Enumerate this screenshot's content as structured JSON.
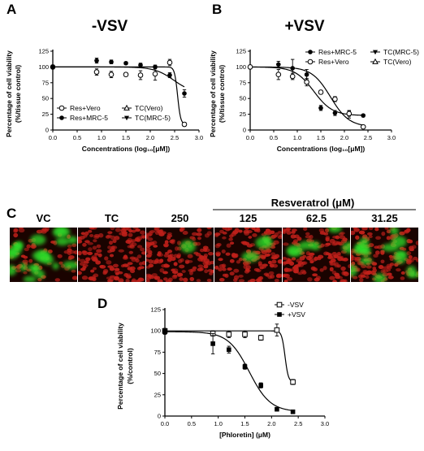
{
  "panels": {
    "A": {
      "letter": "A",
      "title": "-VSV"
    },
    "B": {
      "letter": "B",
      "title": "+VSV"
    },
    "C": {
      "letter": "C",
      "group_label": "Resveratrol (μM)",
      "columns": [
        "VC",
        "TC",
        "250",
        "125",
        "62.5",
        "31.25"
      ]
    },
    "D": {
      "letter": "D"
    }
  },
  "colors": {
    "axis": "#000000",
    "cell_red": "#c0201a",
    "cell_green": "#2ee02a",
    "background": "#ffffff"
  },
  "chart_data": [
    {
      "id": "A",
      "type": "scatter",
      "xlabel": "Concentrations (log₁₀[μM])",
      "ylabel": "Percentage of cell viability (%/tissue control)",
      "xlim": [
        0.0,
        3.0
      ],
      "ylim": [
        0,
        125
      ],
      "xticks": [
        "0.0",
        "0.5",
        "1.0",
        "1.5",
        "2.0",
        "2.5",
        "3.0"
      ],
      "yticks": [
        "0",
        "25",
        "50",
        "75",
        "100",
        "125"
      ],
      "legend": [
        "Res+Vero",
        "TC(Vero)",
        "Res+MRC-5",
        "TC(MRC-5)"
      ],
      "series": [
        {
          "name": "Res+Vero",
          "marker": "open-circle",
          "x": [
            0.0,
            0.9,
            1.2,
            1.5,
            1.8,
            2.1,
            2.4,
            2.7
          ],
          "y": [
            100,
            92,
            88,
            88,
            87,
            89,
            107,
            9
          ],
          "err": [
            3,
            5,
            5,
            3,
            7,
            10,
            5,
            3
          ]
        },
        {
          "name": "Res+MRC-5",
          "marker": "filled-circle",
          "x": [
            0.0,
            0.9,
            1.2,
            1.5,
            1.8,
            2.1,
            2.4,
            2.7
          ],
          "y": [
            100,
            110,
            108,
            106,
            103,
            100,
            87,
            58
          ],
          "err": [
            2,
            4,
            3,
            2,
            3,
            3,
            4,
            6
          ]
        }
      ]
    },
    {
      "id": "B",
      "type": "scatter",
      "xlabel": "Concentrations (log₁₀[μM])",
      "ylabel": "Percentage of cell viability (%/tissue control)",
      "xlim": [
        0.0,
        3.0
      ],
      "ylim": [
        0,
        125
      ],
      "xticks": [
        "0.0",
        "0.5",
        "1.0",
        "1.5",
        "2.0",
        "2.5",
        "3.0"
      ],
      "yticks": [
        "0",
        "25",
        "50",
        "75",
        "100",
        "125"
      ],
      "legend": [
        "Res+MRC-5",
        "TC(MRC-5)",
        "Res+Vero",
        "TC(Vero)"
      ],
      "series": [
        {
          "name": "Res+MRC-5",
          "marker": "filled-circle",
          "x": [
            0.0,
            0.6,
            0.9,
            1.2,
            1.5,
            1.8,
            2.1,
            2.4
          ],
          "y": [
            100,
            104,
            98,
            88,
            35,
            27,
            25,
            23
          ],
          "err": [
            2,
            5,
            14,
            8,
            4,
            4,
            6,
            2
          ]
        },
        {
          "name": "Res+Vero",
          "marker": "open-circle",
          "x": [
            0.0,
            0.6,
            0.9,
            1.2,
            1.5,
            1.8,
            2.1,
            2.4
          ],
          "y": [
            100,
            88,
            85,
            76,
            60,
            49,
            26,
            5
          ],
          "err": [
            3,
            8,
            5,
            6,
            3,
            4,
            4,
            2
          ]
        }
      ]
    },
    {
      "id": "D",
      "type": "scatter",
      "xlabel": "[Phloretin] (μM)",
      "ylabel": "Percentage of cell viability (%/control)",
      "xlim": [
        0.0,
        3.0
      ],
      "ylim": [
        0,
        125
      ],
      "xticks": [
        "0.0",
        "0.5",
        "1.0",
        "1.5",
        "2.0",
        "2.5",
        "3.0"
      ],
      "yticks": [
        "0",
        "25",
        "50",
        "75",
        "100",
        "125"
      ],
      "legend": [
        "-VSV",
        "+VSV"
      ],
      "series": [
        {
          "name": "-VSV",
          "marker": "open-square",
          "x": [
            0.0,
            0.9,
            1.2,
            1.5,
            1.8,
            2.1,
            2.4
          ],
          "y": [
            100,
            97,
            96,
            96,
            92,
            101,
            40
          ],
          "err": [
            3,
            3,
            4,
            4,
            3,
            7,
            3
          ]
        },
        {
          "name": "+VSV",
          "marker": "filled-square",
          "x": [
            0.0,
            0.9,
            1.2,
            1.5,
            1.8,
            2.1,
            2.4
          ],
          "y": [
            99,
            85,
            78,
            58,
            36,
            8,
            5
          ],
          "err": [
            3,
            12,
            4,
            3,
            3,
            2,
            2
          ]
        }
      ]
    }
  ]
}
